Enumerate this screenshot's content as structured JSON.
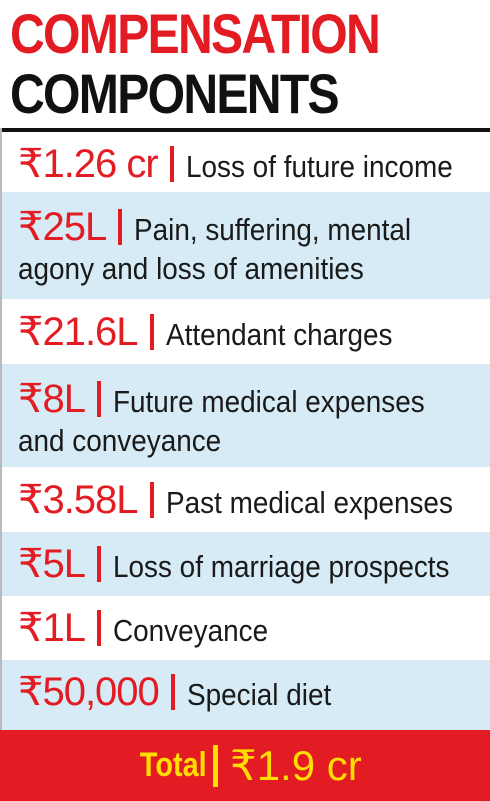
{
  "header": {
    "line1": "COMPENSATION",
    "line2": "COMPONENTS"
  },
  "items": [
    {
      "amount": "₹1.26 cr",
      "description": "Loss of future income",
      "description_line2": ""
    },
    {
      "amount": "₹25L",
      "description": "Pain, suffering, mental",
      "description_line2": "agony and loss of amenities"
    },
    {
      "amount": "₹21.6L",
      "description": "Attendant charges",
      "description_line2": ""
    },
    {
      "amount": "₹8L",
      "description": "Future medical expenses",
      "description_line2": "and conveyance"
    },
    {
      "amount": "₹3.58L",
      "description": "Past medical expenses",
      "description_line2": ""
    },
    {
      "amount": "₹5L",
      "description": "Loss of marriage prospects",
      "description_line2": ""
    },
    {
      "amount": "₹1L",
      "description": "Conveyance",
      "description_line2": ""
    },
    {
      "amount": "₹50,000",
      "description": "Special diet",
      "description_line2": ""
    }
  ],
  "total": {
    "label": "Total",
    "amount": "₹1.9 cr"
  },
  "colors": {
    "accent_red": "#e31b23",
    "row_blue": "#d6ebf5",
    "total_text_yellow": "#ffde00",
    "title_black": "#111111"
  }
}
